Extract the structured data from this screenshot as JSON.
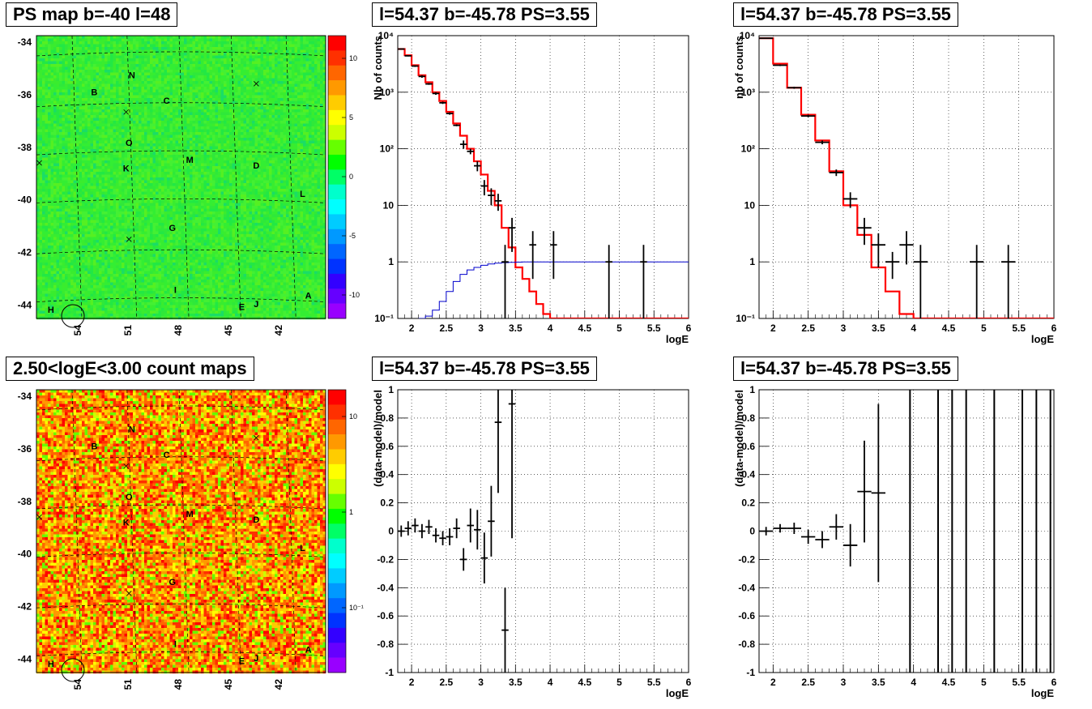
{
  "maps": [
    {
      "title": "PS map b=-40 l=48",
      "kind": "residual",
      "lat_ticks": [
        "-34",
        "-36",
        "-38",
        "-40",
        "-42",
        "-44"
      ],
      "lon_ticks": [
        "54",
        "51",
        "48",
        "45",
        "42"
      ],
      "sources": [
        "N",
        "B",
        "C",
        "O",
        "K",
        "M",
        "D",
        "L",
        "G",
        "I",
        "A",
        "E",
        "J",
        "H"
      ],
      "colorbar_ticks": [
        "10",
        "5",
        "0",
        "-5",
        "-10"
      ],
      "colorbar_colors": [
        "#FF0000",
        "#FF3000",
        "#FF6600",
        "#FF9900",
        "#FFCC00",
        "#FFFF00",
        "#CCFF00",
        "#66FF00",
        "#00FF00",
        "#00FF66",
        "#00FFCC",
        "#00FFFF",
        "#00CCFF",
        "#0099FF",
        "#0066FF",
        "#0033FF",
        "#3300FF",
        "#6600FF",
        "#9900FF"
      ]
    },
    {
      "title": "2.50<logE<3.00 count maps",
      "kind": "counts",
      "lat_ticks": [
        "-34",
        "-36",
        "-38",
        "-40",
        "-42",
        "-44"
      ],
      "lon_ticks": [
        "54",
        "51",
        "48",
        "45",
        "42"
      ],
      "sources": [
        "N",
        "B",
        "C",
        "O",
        "K",
        "M",
        "D",
        "L",
        "G",
        "I",
        "A",
        "E",
        "J",
        "H"
      ],
      "colorbar_ticks": [
        "10",
        "1",
        "10⁻¹"
      ],
      "colorbar_colors": [
        "#FF0000",
        "#FF3000",
        "#FF6600",
        "#FF9900",
        "#FFCC00",
        "#FFFF00",
        "#CCFF00",
        "#66FF00",
        "#00FF00",
        "#00FF66",
        "#00FFCC",
        "#00FFFF",
        "#00CCFF",
        "#0099FF",
        "#0066FF",
        "#0033FF",
        "#3300FF",
        "#6600FF",
        "#9900FF"
      ]
    }
  ],
  "chart_data": [
    {
      "type": "line",
      "title": "l=54.37 b=-45.78 PS=3.55",
      "xlabel": "logE",
      "ylabel": "Nb of counts",
      "yscale": "log",
      "xlim": [
        1.8,
        6.0
      ],
      "ylim": [
        0.1,
        10000
      ],
      "xticks": [
        "2",
        "2.5",
        "3",
        "3.5",
        "4",
        "4.5",
        "5",
        "5.5",
        "6"
      ],
      "yticks": [
        "10⁻¹",
        "1",
        "10",
        "10²",
        "10³",
        "10⁴"
      ],
      "grid": true,
      "series": [
        {
          "kind": "step",
          "color": "#FF0000",
          "x_edges": [
            1.8,
            1.9,
            2.0,
            2.1,
            2.2,
            2.3,
            2.4,
            2.5,
            2.6,
            2.7,
            2.8,
            2.9,
            3.0,
            3.1,
            3.2,
            3.3,
            3.4,
            3.5,
            3.6,
            3.7,
            3.8,
            3.9,
            4.0,
            6.0
          ],
          "values": [
            5800,
            4500,
            3000,
            2000,
            1500,
            1000,
            700,
            450,
            280,
            170,
            100,
            60,
            35,
            18,
            10,
            4,
            1.8,
            0.8,
            0.5,
            0.3,
            0.18,
            0.12,
            0.1
          ]
        },
        {
          "kind": "step",
          "color": "#0000CC",
          "x_edges": [
            2.1,
            2.2,
            2.3,
            2.4,
            2.5,
            2.6,
            2.7,
            2.8,
            2.9,
            3.0,
            3.1,
            3.2,
            3.3,
            3.4,
            3.5,
            3.6,
            3.7,
            6.0
          ],
          "values": [
            0.1,
            0.11,
            0.14,
            0.2,
            0.3,
            0.45,
            0.6,
            0.72,
            0.8,
            0.87,
            0.92,
            0.95,
            0.97,
            0.98,
            0.99,
            1.0,
            1.0
          ]
        },
        {
          "kind": "errorbars",
          "color": "#000000",
          "x": [
            1.85,
            1.95,
            2.05,
            2.15,
            2.25,
            2.35,
            2.45,
            2.55,
            2.65,
            2.75,
            2.85,
            2.95,
            3.05,
            3.15,
            3.25,
            3.35,
            3.45,
            3.75,
            4.05,
            4.85,
            5.35
          ],
          "y": [
            5800,
            4400,
            2900,
            1900,
            1400,
            950,
            650,
            420,
            260,
            120,
            90,
            50,
            22,
            15,
            12,
            1,
            4,
            2,
            2,
            1,
            1
          ],
          "xerr": 0.05,
          "ylo": [
            5700,
            4300,
            2800,
            1800,
            1350,
            900,
            620,
            400,
            250,
            100,
            80,
            40,
            15,
            10,
            8,
            0.1,
            1.5,
            0.5,
            0.5,
            0.1,
            0.1
          ],
          "yhi": [
            5900,
            4500,
            3000,
            2000,
            1450,
            1000,
            680,
            440,
            270,
            140,
            100,
            60,
            28,
            20,
            16,
            2,
            6,
            3.5,
            3.5,
            2,
            2
          ]
        }
      ]
    },
    {
      "type": "line",
      "title": "l=54.37 b=-45.78 PS=3.55",
      "xlabel": "logE",
      "ylabel": "nb of counts",
      "yscale": "log",
      "xlim": [
        1.8,
        6.0
      ],
      "ylim": [
        0.1,
        10000
      ],
      "xticks": [
        "2",
        "2.5",
        "3",
        "3.5",
        "4",
        "4.5",
        "5",
        "5.5",
        "6"
      ],
      "yticks": [
        "10⁻¹",
        "1",
        "10",
        "10²",
        "10³",
        "10⁴"
      ],
      "grid": true,
      "series": [
        {
          "kind": "step",
          "color": "#FF0000",
          "x_edges": [
            1.8,
            2.0,
            2.2,
            2.4,
            2.6,
            2.8,
            3.0,
            3.2,
            3.4,
            3.6,
            3.8,
            4.0,
            4.2,
            6.0
          ],
          "values": [
            9000,
            3200,
            1200,
            400,
            140,
            40,
            10,
            3,
            0.8,
            0.3,
            0.12,
            0.1,
            0.1
          ],
          "note": ""
        },
        {
          "kind": "errorbars",
          "color": "#000000",
          "x": [
            1.9,
            2.1,
            2.3,
            2.5,
            2.7,
            2.9,
            3.1,
            3.3,
            3.5,
            3.7,
            3.9,
            4.1,
            4.9,
            5.35
          ],
          "y": [
            9000,
            3000,
            1200,
            380,
            130,
            38,
            13,
            4,
            2,
            1,
            2,
            1,
            1,
            1
          ],
          "xerr": 0.1,
          "ylo": [
            8800,
            2900,
            1150,
            360,
            120,
            33,
            9,
            2,
            0.8,
            0.5,
            0.9,
            0.1,
            0.1,
            0.1
          ],
          "yhi": [
            9200,
            3100,
            1250,
            400,
            140,
            43,
            17,
            6,
            3.2,
            1.5,
            3.5,
            2,
            2,
            2
          ]
        }
      ]
    },
    {
      "type": "scatter",
      "title": "l=54.37 b=-45.78 PS=3.55",
      "xlabel": "logE",
      "ylabel": "(data-model)/model",
      "xlim": [
        1.8,
        6.0
      ],
      "ylim": [
        -1,
        1
      ],
      "xticks": [
        "2",
        "2.5",
        "3",
        "3.5",
        "4",
        "4.5",
        "5",
        "5.5",
        "6"
      ],
      "yticks": [
        "-1",
        "-0.8",
        "-0.6",
        "-0.4",
        "-0.2",
        "0",
        "0.2",
        "0.4",
        "0.6",
        "0.8",
        "1"
      ],
      "grid": true,
      "series": [
        {
          "kind": "errorbars",
          "color": "#000000",
          "x": [
            1.85,
            1.95,
            2.05,
            2.15,
            2.25,
            2.35,
            2.45,
            2.55,
            2.65,
            2.75,
            2.85,
            2.95,
            3.05,
            3.15,
            3.25,
            3.35,
            3.45
          ],
          "y": [
            0.0,
            0.02,
            0.04,
            0.0,
            0.03,
            -0.03,
            -0.05,
            -0.04,
            0.02,
            -0.2,
            0.04,
            0.01,
            -0.19,
            0.07,
            0.77,
            -0.7,
            0.9
          ],
          "xerr": 0.05,
          "yerr": [
            0.04,
            0.05,
            0.05,
            0.05,
            0.05,
            0.05,
            0.05,
            0.06,
            0.07,
            0.08,
            0.12,
            0.14,
            0.18,
            0.25,
            0.5,
            0.3,
            0.95
          ]
        }
      ]
    },
    {
      "type": "scatter",
      "title": "l=54.37 b=-45.78 PS=3.55",
      "xlabel": "logE",
      "ylabel": "(data-model)/model",
      "xlim": [
        1.8,
        6.0
      ],
      "ylim": [
        -1,
        1
      ],
      "xticks": [
        "2",
        "2.5",
        "3",
        "3.5",
        "4",
        "4.5",
        "5",
        "5.5",
        "6"
      ],
      "yticks": [
        "-1",
        "-0.8",
        "-0.6",
        "-0.4",
        "-0.2",
        "0",
        "0.2",
        "0.4",
        "0.6",
        "0.8",
        "1"
      ],
      "grid": true,
      "series": [
        {
          "kind": "errorbars",
          "color": "#000000",
          "x": [
            1.9,
            2.1,
            2.3,
            2.5,
            2.7,
            2.9,
            3.1,
            3.3,
            3.5
          ],
          "y": [
            0.0,
            0.02,
            0.02,
            -0.04,
            -0.06,
            0.03,
            -0.1,
            0.28,
            0.27
          ],
          "xerr": 0.1,
          "yerr": [
            0.03,
            0.03,
            0.04,
            0.05,
            0.06,
            0.09,
            0.15,
            0.36,
            0.63
          ]
        },
        {
          "kind": "vlines",
          "color": "#000000",
          "x": [
            3.95,
            4.35,
            4.55,
            4.75,
            5.15,
            5.55,
            5.75,
            5.95
          ]
        }
      ]
    }
  ]
}
